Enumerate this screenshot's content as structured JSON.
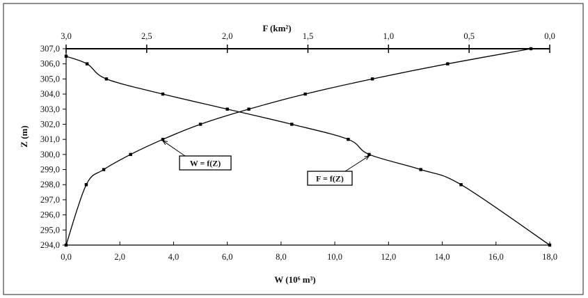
{
  "chart_data": {
    "type": "line",
    "xlabel_bottom": "W (10⁶ m³)",
    "xlabel_top": "F (km²)",
    "ylabel": "Z (m)",
    "x_bottom_range": [
      0,
      18
    ],
    "x_top_range": [
      3,
      0
    ],
    "y_range": [
      294,
      307
    ],
    "x_bottom_ticks": [
      "0,0",
      "2,0",
      "4,0",
      "6,0",
      "8,0",
      "10,0",
      "12,0",
      "14,0",
      "16,0",
      "18,0"
    ],
    "x_top_ticks": [
      "3,0",
      "2,5",
      "2,0",
      "1,5",
      "1,0",
      "0,5",
      "0,0"
    ],
    "y_ticks": [
      "294,0",
      "295,0",
      "296,0",
      "297,0",
      "298,0",
      "299,0",
      "300,0",
      "301,0",
      "302,0",
      "303,0",
      "304,0",
      "305,0",
      "306,0",
      "307,0"
    ],
    "grid": false,
    "series": [
      {
        "name": "W = f(Z)",
        "axis": "bottom",
        "z": [
          294,
          298,
          299,
          300,
          301,
          302,
          303,
          304,
          305,
          306,
          307
        ],
        "values": [
          0.0,
          0.75,
          1.4,
          2.4,
          3.6,
          5.0,
          6.8,
          8.9,
          11.4,
          14.2,
          17.3
        ]
      },
      {
        "name": "F = f(Z)",
        "axis": "top",
        "z": [
          294,
          298,
          299,
          300,
          301,
          302,
          303,
          304,
          305,
          306,
          306.5
        ],
        "values": [
          0.0,
          0.55,
          0.8,
          1.12,
          1.25,
          1.6,
          2.0,
          2.4,
          2.75,
          2.87,
          3.0
        ]
      }
    ],
    "annotations": [
      {
        "text": "W = f(Z)",
        "series": "W = f(Z)",
        "point_z": 301
      },
      {
        "text": "F = f(Z)",
        "series": "F = f(Z)",
        "point_z": 300
      }
    ]
  }
}
